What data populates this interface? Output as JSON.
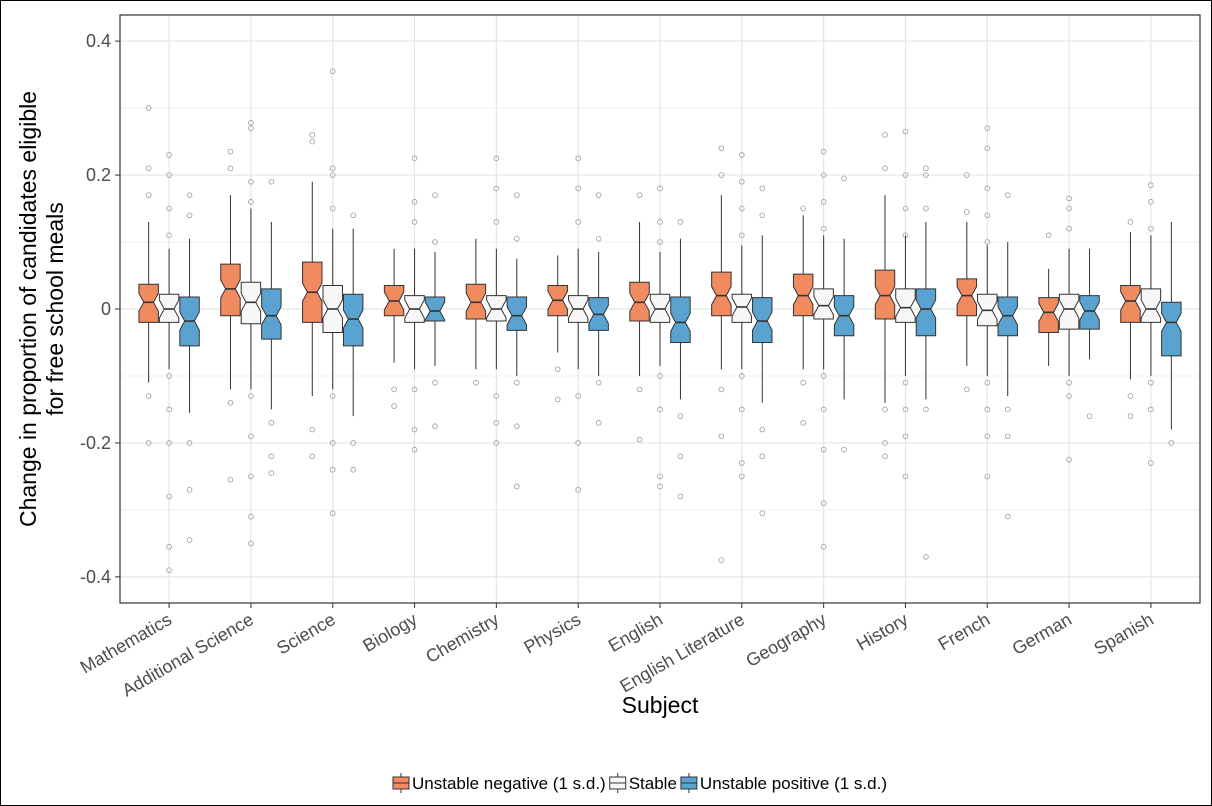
{
  "chart_data": {
    "type": "boxplot",
    "x_label": "Subject",
    "y_label": [
      "Change in proportion of candidates eligible",
      "for free school meals"
    ],
    "categories": [
      "Mathematics",
      "Additional Science",
      "Science",
      "Biology",
      "Chemistry",
      "Physics",
      "English",
      "English Literature",
      "Geography",
      "History",
      "French",
      "German",
      "Spanish"
    ],
    "ylim": [
      -0.439,
      0.439
    ],
    "yticks": [
      -0.4,
      -0.2,
      0.0,
      0.2,
      0.4
    ],
    "minor_yticks": [
      -0.3,
      -0.1,
      0.1,
      0.3
    ],
    "grid": true,
    "notch": true,
    "legend_position": "bottom",
    "series": [
      {
        "name": "Unstable negative (1 s.d.)",
        "color": "#f08a5f",
        "boxes": [
          {
            "low": -0.11,
            "q1": -0.02,
            "median": 0.01,
            "q3": 0.037,
            "high": 0.13,
            "outliers": [
              0.3,
              0.21,
              0.17,
              -0.13,
              -0.2
            ]
          },
          {
            "low": -0.12,
            "q1": -0.01,
            "median": 0.03,
            "q3": 0.067,
            "high": 0.17,
            "outliers": [
              0.235,
              0.21,
              -0.14,
              -0.255
            ]
          },
          {
            "low": -0.13,
            "q1": -0.02,
            "median": 0.025,
            "q3": 0.07,
            "high": 0.19,
            "outliers": [
              0.26,
              0.25,
              -0.18,
              -0.22
            ]
          },
          {
            "low": -0.08,
            "q1": -0.01,
            "median": 0.012,
            "q3": 0.035,
            "high": 0.09,
            "outliers": [
              -0.12,
              -0.145
            ]
          },
          {
            "low": -0.09,
            "q1": -0.015,
            "median": 0.01,
            "q3": 0.037,
            "high": 0.105,
            "outliers": [
              -0.11
            ]
          },
          {
            "low": -0.065,
            "q1": -0.01,
            "median": 0.013,
            "q3": 0.035,
            "high": 0.08,
            "outliers": [
              -0.09,
              -0.135
            ]
          },
          {
            "low": -0.1,
            "q1": -0.018,
            "median": 0.01,
            "q3": 0.04,
            "high": 0.13,
            "outliers": [
              0.17,
              -0.12,
              -0.195
            ]
          },
          {
            "low": -0.09,
            "q1": -0.01,
            "median": 0.02,
            "q3": 0.055,
            "high": 0.17,
            "outliers": [
              0.24,
              0.2,
              -0.12,
              -0.19,
              -0.375
            ]
          },
          {
            "low": -0.09,
            "q1": -0.01,
            "median": 0.02,
            "q3": 0.052,
            "high": 0.14,
            "outliers": [
              0.15,
              -0.11,
              -0.17
            ]
          },
          {
            "low": -0.14,
            "q1": -0.015,
            "median": 0.02,
            "q3": 0.058,
            "high": 0.17,
            "outliers": [
              0.26,
              0.21,
              -0.15,
              -0.2,
              -0.22
            ]
          },
          {
            "low": -0.085,
            "q1": -0.01,
            "median": 0.02,
            "q3": 0.045,
            "high": 0.13,
            "outliers": [
              0.2,
              0.145,
              -0.12
            ]
          },
          {
            "low": -0.085,
            "q1": -0.035,
            "median": -0.005,
            "q3": 0.017,
            "high": 0.06,
            "outliers": [
              0.11
            ]
          },
          {
            "low": -0.105,
            "q1": -0.02,
            "median": 0.012,
            "q3": 0.035,
            "high": 0.115,
            "outliers": [
              0.13,
              -0.13,
              -0.16
            ]
          }
        ]
      },
      {
        "name": "Stable",
        "color": "#f7f7f7",
        "boxes": [
          {
            "low": -0.09,
            "q1": -0.02,
            "median": 0.0,
            "q3": 0.022,
            "high": 0.09,
            "outliers": [
              0.23,
              0.2,
              0.15,
              0.11,
              -0.1,
              -0.15,
              -0.2,
              -0.28,
              -0.355,
              -0.39
            ]
          },
          {
            "low": -0.12,
            "q1": -0.022,
            "median": 0.01,
            "q3": 0.04,
            "high": 0.15,
            "outliers": [
              0.278,
              0.27,
              0.19,
              0.16,
              -0.13,
              -0.19,
              -0.25,
              -0.31,
              -0.35
            ]
          },
          {
            "low": -0.12,
            "q1": -0.035,
            "median": 0.0,
            "q3": 0.035,
            "high": 0.12,
            "outliers": [
              0.355,
              0.21,
              0.2,
              0.15,
              -0.13,
              -0.2,
              -0.24,
              -0.305
            ]
          },
          {
            "low": -0.09,
            "q1": -0.02,
            "median": 0.0,
            "q3": 0.02,
            "high": 0.09,
            "outliers": [
              0.225,
              0.16,
              0.13,
              -0.12,
              -0.18,
              -0.21
            ]
          },
          {
            "low": -0.09,
            "q1": -0.018,
            "median": 0.0,
            "q3": 0.02,
            "high": 0.09,
            "outliers": [
              0.225,
              0.18,
              0.13,
              -0.13,
              -0.17,
              -0.2
            ]
          },
          {
            "low": -0.09,
            "q1": -0.02,
            "median": 0.0,
            "q3": 0.02,
            "high": 0.09,
            "outliers": [
              0.225,
              0.18,
              0.13,
              -0.13,
              -0.2,
              -0.27
            ]
          },
          {
            "low": -0.085,
            "q1": -0.02,
            "median": 0.0,
            "q3": 0.022,
            "high": 0.085,
            "outliers": [
              0.18,
              0.13,
              0.1,
              -0.1,
              -0.15,
              -0.25,
              -0.265
            ]
          },
          {
            "low": -0.09,
            "q1": -0.02,
            "median": 0.003,
            "q3": 0.022,
            "high": 0.095,
            "outliers": [
              0.23,
              0.19,
              0.15,
              0.11,
              -0.1,
              -0.15,
              -0.23,
              -0.25
            ]
          },
          {
            "low": -0.09,
            "q1": -0.015,
            "median": 0.005,
            "q3": 0.03,
            "high": 0.11,
            "outliers": [
              0.235,
              0.2,
              0.16,
              0.12,
              -0.1,
              -0.15,
              -0.21,
              -0.29,
              -0.355
            ]
          },
          {
            "low": -0.1,
            "q1": -0.02,
            "median": 0.002,
            "q3": 0.03,
            "high": 0.11,
            "outliers": [
              0.265,
              0.2,
              0.15,
              0.11,
              -0.11,
              -0.15,
              -0.19,
              -0.25
            ]
          },
          {
            "low": -0.1,
            "q1": -0.025,
            "median": -0.002,
            "q3": 0.022,
            "high": 0.095,
            "outliers": [
              0.27,
              0.24,
              0.18,
              0.14,
              0.1,
              -0.11,
              -0.15,
              -0.19,
              -0.25
            ]
          },
          {
            "low": -0.1,
            "q1": -0.03,
            "median": 0.0,
            "q3": 0.022,
            "high": 0.09,
            "outliers": [
              0.165,
              0.15,
              0.12,
              -0.11,
              -0.13,
              -0.225
            ]
          },
          {
            "low": -0.1,
            "q1": -0.02,
            "median": 0.0,
            "q3": 0.03,
            "high": 0.11,
            "outliers": [
              0.185,
              0.16,
              0.12,
              -0.11,
              -0.15,
              -0.23
            ]
          }
        ]
      },
      {
        "name": "Unstable positive (1 s.d.)",
        "color": "#5aa2cf",
        "boxes": [
          {
            "low": -0.155,
            "q1": -0.055,
            "median": -0.018,
            "q3": 0.018,
            "high": 0.105,
            "outliers": [
              0.17,
              0.14,
              -0.2,
              -0.27,
              -0.345
            ]
          },
          {
            "low": -0.15,
            "q1": -0.045,
            "median": -0.01,
            "q3": 0.03,
            "high": 0.13,
            "outliers": [
              0.19,
              -0.17,
              -0.22,
              -0.245
            ]
          },
          {
            "low": -0.16,
            "q1": -0.055,
            "median": -0.015,
            "q3": 0.022,
            "high": 0.12,
            "outliers": [
              0.14,
              -0.2,
              -0.24
            ]
          },
          {
            "low": -0.085,
            "q1": -0.018,
            "median": -0.003,
            "q3": 0.018,
            "high": 0.085,
            "outliers": [
              0.17,
              0.1,
              -0.11,
              -0.175
            ]
          },
          {
            "low": -0.1,
            "q1": -0.032,
            "median": -0.01,
            "q3": 0.018,
            "high": 0.075,
            "outliers": [
              0.17,
              0.105,
              -0.11,
              -0.175,
              -0.265
            ]
          },
          {
            "low": -0.1,
            "q1": -0.032,
            "median": -0.008,
            "q3": 0.017,
            "high": 0.085,
            "outliers": [
              0.17,
              0.105,
              -0.11,
              -0.17
            ]
          },
          {
            "low": -0.135,
            "q1": -0.05,
            "median": -0.02,
            "q3": 0.018,
            "high": 0.105,
            "outliers": [
              0.13,
              -0.16,
              -0.22,
              -0.28
            ]
          },
          {
            "low": -0.14,
            "q1": -0.05,
            "median": -0.018,
            "q3": 0.017,
            "high": 0.11,
            "outliers": [
              0.18,
              0.14,
              -0.18,
              -0.22,
              -0.305
            ]
          },
          {
            "low": -0.135,
            "q1": -0.04,
            "median": -0.01,
            "q3": 0.02,
            "high": 0.105,
            "outliers": [
              0.195,
              -0.21
            ]
          },
          {
            "low": -0.135,
            "q1": -0.04,
            "median": 0.0,
            "q3": 0.03,
            "high": 0.13,
            "outliers": [
              0.21,
              0.2,
              0.15,
              -0.15,
              -0.37
            ]
          },
          {
            "low": -0.13,
            "q1": -0.04,
            "median": -0.01,
            "q3": 0.018,
            "high": 0.1,
            "outliers": [
              0.17,
              -0.15,
              -0.19,
              -0.31
            ]
          },
          {
            "low": -0.075,
            "q1": -0.03,
            "median": -0.003,
            "q3": 0.02,
            "high": 0.09,
            "outliers": [
              -0.16
            ]
          },
          {
            "low": -0.18,
            "q1": -0.07,
            "median": -0.02,
            "q3": 0.01,
            "high": 0.13,
            "outliers": [
              -0.2
            ]
          }
        ]
      }
    ]
  }
}
